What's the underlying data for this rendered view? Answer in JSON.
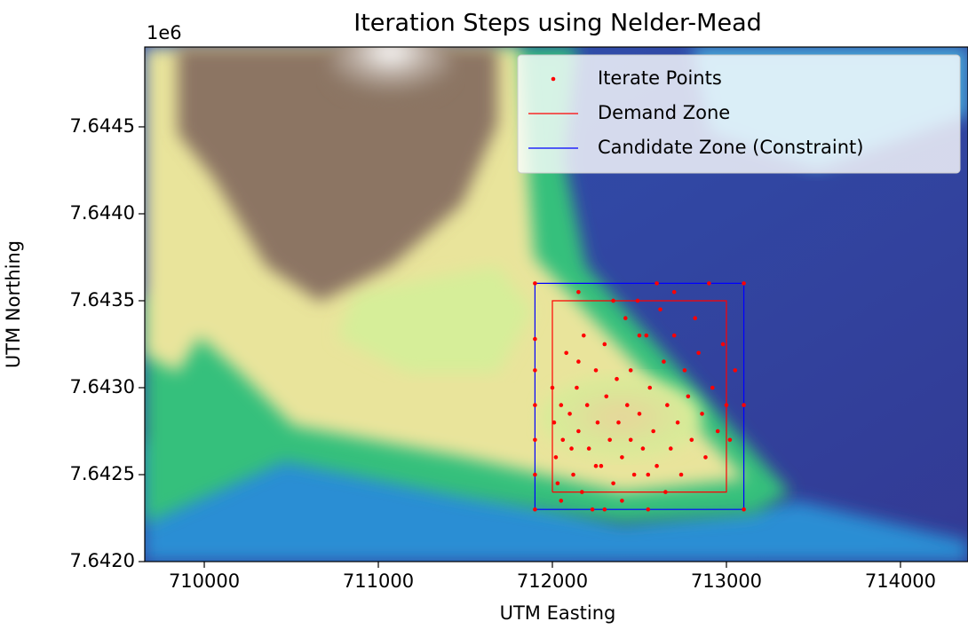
{
  "chart_data": {
    "type": "scatter",
    "title": "Iteration Steps using Nelder-Mead",
    "x_label": "UTM Easting",
    "y_label": "UTM Northing",
    "y_offset_label": "1e6",
    "xlim": [
      709658,
      714388
    ],
    "ylim": [
      7642000,
      7644959
    ],
    "xticks": [
      710000,
      711000,
      712000,
      713000,
      714000
    ],
    "yticks": [
      {
        "value": 7642000,
        "label": "7.6420"
      },
      {
        "value": 7642500,
        "label": "7.6425"
      },
      {
        "value": 7643000,
        "label": "7.6430"
      },
      {
        "value": 7643500,
        "label": "7.6435"
      },
      {
        "value": 7644000,
        "label": "7.6440"
      },
      {
        "value": 7644500,
        "label": "7.6445"
      }
    ],
    "legend": "upper right",
    "series": [
      {
        "name": "Iterate Points",
        "color": "#ff0000",
        "style": "points",
        "x": [
          711900,
          711900,
          711900,
          711900,
          711900,
          711900,
          711900,
          712000,
          712010,
          712020,
          712030,
          712050,
          712060,
          712080,
          712100,
          712110,
          712120,
          712140,
          712150,
          712170,
          712180,
          712200,
          712210,
          712230,
          712250,
          712260,
          712280,
          712300,
          712310,
          712330,
          712350,
          712370,
          712380,
          712400,
          712420,
          712430,
          712450,
          712470,
          712490,
          712500,
          712520,
          712540,
          712550,
          712560,
          712580,
          712600,
          712620,
          712640,
          712660,
          712680,
          712700,
          712720,
          712740,
          712760,
          712780,
          712800,
          712820,
          712840,
          712860,
          712880,
          712900,
          712920,
          712950,
          712980,
          713000,
          713020,
          713050,
          713100,
          713100,
          713100,
          712300,
          712150,
          712600,
          712450,
          712700,
          712350,
          712050,
          712500,
          712150,
          712250,
          712400,
          712650,
          712550
        ],
        "y": [
          7643600,
          7643280,
          7643100,
          7642900,
          7642700,
          7642500,
          7642300,
          7643000,
          7642800,
          7642600,
          7642450,
          7642900,
          7642700,
          7643200,
          7642850,
          7642650,
          7642500,
          7643000,
          7642750,
          7642400,
          7643300,
          7642900,
          7642650,
          7642300,
          7643100,
          7642800,
          7642550,
          7643250,
          7642950,
          7642700,
          7642450,
          7643050,
          7642800,
          7642600,
          7643400,
          7642900,
          7642700,
          7642500,
          7643500,
          7642850,
          7642650,
          7643300,
          7642300,
          7643000,
          7642750,
          7642550,
          7643450,
          7643150,
          7642900,
          7642650,
          7643300,
          7642800,
          7642500,
          7643100,
          7642950,
          7642700,
          7643400,
          7643200,
          7642850,
          7642600,
          7643600,
          7643000,
          7642750,
          7643250,
          7642900,
          7642700,
          7643100,
          7643600,
          7642900,
          7642300,
          7642300,
          7643550,
          7643600,
          7643100,
          7643550,
          7643500,
          7642350,
          7643300,
          7643150,
          7642550,
          7642350,
          7642400,
          7642500
        ]
      },
      {
        "name": "Demand Zone",
        "color": "#ff0000",
        "style": "line",
        "x": [
          712000,
          713000,
          713000,
          712000,
          712000
        ],
        "y": [
          7642400,
          7642400,
          7643500,
          7643500,
          7642400
        ]
      },
      {
        "name": "Candidate Zone (Constraint)",
        "color": "#0000ff",
        "style": "line",
        "x": [
          711900,
          713100,
          713100,
          711900,
          711900
        ],
        "y": [
          7642300,
          7642300,
          7643600,
          7643600,
          7642300
        ]
      }
    ]
  }
}
